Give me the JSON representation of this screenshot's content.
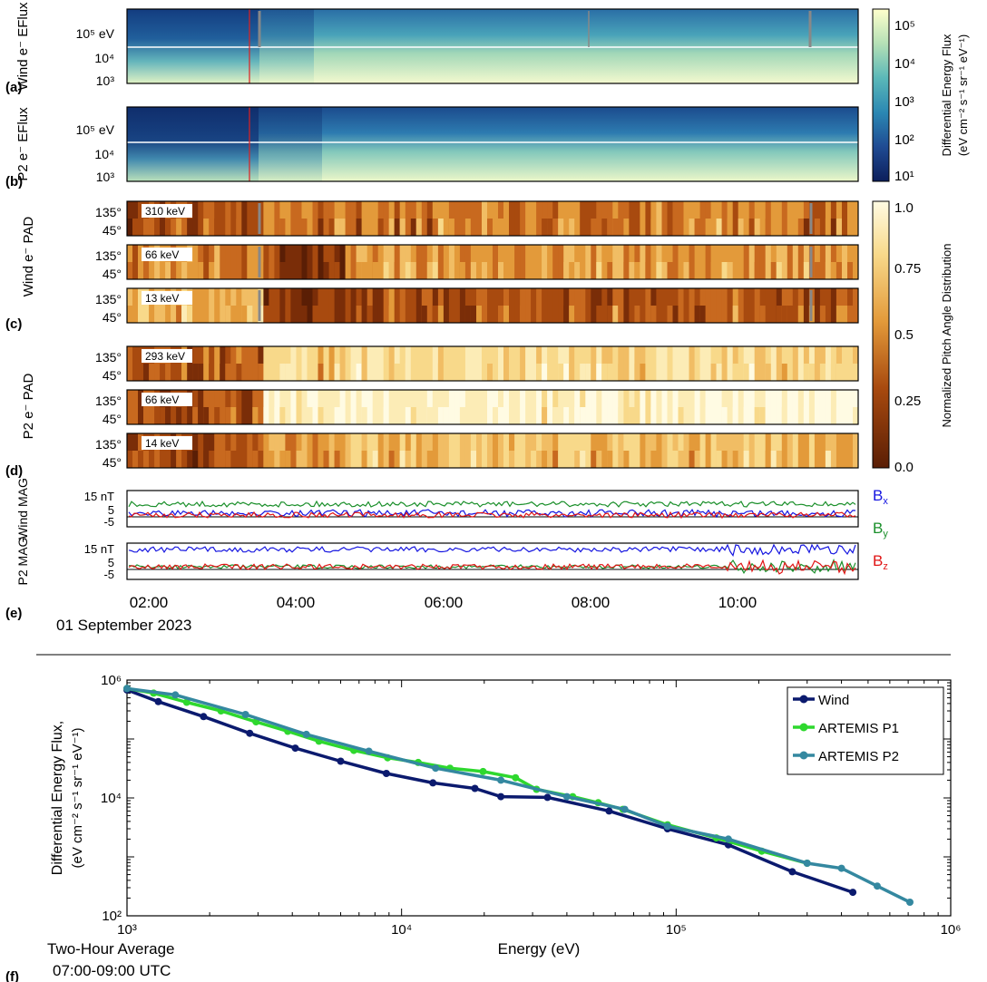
{
  "chart_data": [
    {
      "panel": "a",
      "type": "heatmap",
      "ylabel": "Wind e⁻ EFlux",
      "yticks": [
        "10⁵ eV",
        "10⁴",
        "10³"
      ],
      "colorbar": {
        "label": "Differential Energy Flux",
        "units": "(eV cm⁻² s⁻¹ sr⁻¹ eV⁻¹)",
        "ticks": [
          "10⁵",
          "10⁴",
          "10³",
          "10²",
          "10¹"
        ],
        "range": [
          10,
          200000
        ],
        "scale": "log",
        "colormap": "yellow-green-blue"
      }
    },
    {
      "panel": "b",
      "type": "heatmap",
      "ylabel": "P2 e⁻ EFlux",
      "yticks": [
        "10⁵ eV",
        "10⁴",
        "10³"
      ]
    },
    {
      "panel": "c",
      "type": "heatmap",
      "ylabel": "Wind e⁻ PAD",
      "energies": [
        "310 keV",
        "66 keV",
        "13 keV"
      ],
      "yticks": [
        "135°",
        "45°"
      ],
      "colorbar": {
        "label": "Normalized Pitch Angle Distribution",
        "ticks": [
          "1.0",
          "0.75",
          "0.5",
          "0.25",
          "0.0"
        ],
        "range": [
          0,
          1
        ]
      }
    },
    {
      "panel": "d",
      "type": "heatmap",
      "ylabel": "P2 e⁻ PAD",
      "energies": [
        "293 keV",
        "66 keV",
        "14 keV"
      ],
      "yticks": [
        "135°",
        "45°"
      ]
    },
    {
      "panel": "e",
      "type": "line",
      "ylabels": [
        "Wind MAG",
        "P2 MAG"
      ],
      "yticks": [
        "15 nT",
        "5",
        "-5"
      ],
      "series": [
        {
          "name": "Bx",
          "color": "#1515e0"
        },
        {
          "name": "By",
          "color": "#1a8f2a"
        },
        {
          "name": "Bz",
          "color": "#e01515"
        }
      ],
      "xticks": [
        "02:00",
        "04:00",
        "06:00",
        "08:00",
        "10:00"
      ],
      "date": "01 September 2023"
    },
    {
      "panel": "f",
      "type": "line",
      "xlabel": "Energy (eV)",
      "ylabel": "Differential Energy Flux,",
      "ylabel2": "(eV cm⁻² s⁻¹ sr⁻¹ eV⁻¹)",
      "xscale": "log",
      "yscale": "log",
      "xlim": [
        1000,
        1000000
      ],
      "ylim": [
        100,
        1000000
      ],
      "xticks": [
        "10³",
        "10⁴",
        "10⁵",
        "10⁶"
      ],
      "yticks": [
        "10⁶",
        "10⁴",
        "10²"
      ],
      "legend": "top-right",
      "note1": "Two-Hour Average",
      "note2": "07:00-09:00 UTC",
      "series": [
        {
          "name": "Wind",
          "color": "#0b1a6e",
          "x": [
            1000,
            1300,
            1900,
            2800,
            4100,
            6000,
            8800,
            13000,
            18500,
            23000,
            34000,
            57000,
            93000,
            155000,
            265000,
            440000
          ],
          "y": [
            680000,
            430000,
            240000,
            125000,
            70000,
            42000,
            26000,
            18000,
            14500,
            10500,
            10200,
            6000,
            3000,
            1600,
            560,
            250
          ]
        },
        {
          "name": "ARTEMIS P1",
          "color": "#2ed82e",
          "x": [
            1000,
            1250,
            1650,
            2200,
            2950,
            3850,
            5000,
            6700,
            8900,
            11500,
            15000,
            19800,
            26000,
            31000,
            42000,
            52000,
            64000,
            93000,
            140000,
            205000,
            300000
          ],
          "y": [
            720000,
            600000,
            420000,
            300000,
            195000,
            135000,
            92000,
            64000,
            48000,
            40000,
            32000,
            28000,
            22000,
            14000,
            10500,
            8300,
            6400,
            3500,
            2100,
            1250,
            780
          ]
        },
        {
          "name": "ARTEMIS P2",
          "color": "#3488a0",
          "x": [
            1000,
            1500,
            2700,
            4500,
            7600,
            13300,
            23000,
            40000,
            65000,
            93000,
            155000,
            300000,
            400000,
            540000,
            710000
          ],
          "y": [
            720000,
            560000,
            260000,
            120000,
            62000,
            32000,
            20000,
            10500,
            6400,
            3300,
            2000,
            780,
            640,
            320,
            170
          ]
        }
      ]
    }
  ]
}
